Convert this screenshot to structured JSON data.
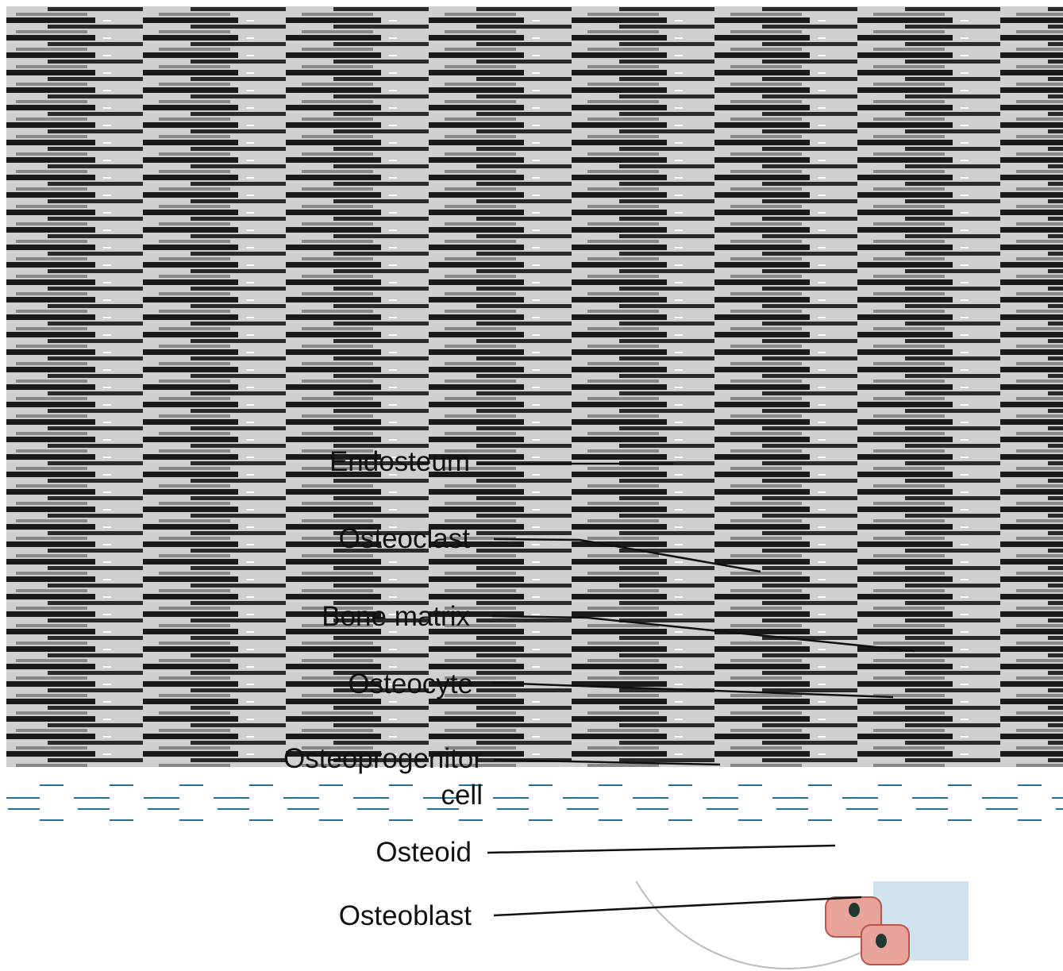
{
  "labels": [
    {
      "lines": [
        "Endosteum"
      ]
    },
    {
      "lines": [
        "Osteoclast"
      ]
    },
    {
      "lines": [
        "Bone matrix"
      ]
    },
    {
      "lines": [
        "Osteocyte"
      ]
    },
    {
      "lines": [
        "Osteoprogenitor",
        "cell"
      ]
    },
    {
      "lines": [
        "Osteoid"
      ]
    },
    {
      "lines": [
        "Osteoblast"
      ]
    }
  ]
}
